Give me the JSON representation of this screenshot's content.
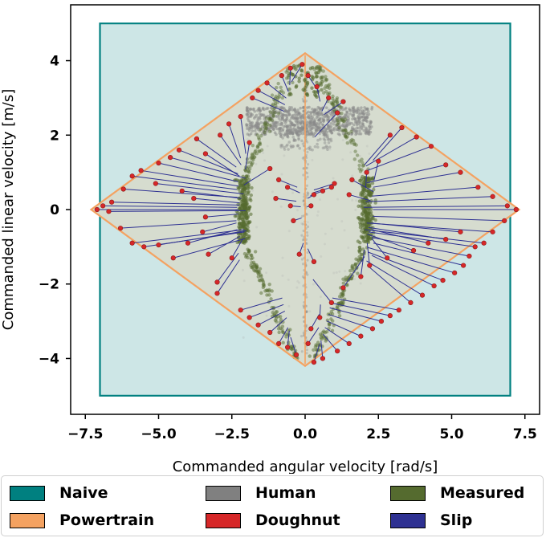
{
  "chart_data": {
    "type": "scatter",
    "title": "",
    "xlabel": "Commanded angular velocity [rad/s]",
    "ylabel": "Commanded linear velocity [m/s]",
    "xlim": [
      -8.0,
      8.0
    ],
    "ylim": [
      -5.5,
      5.5
    ],
    "xticks": [
      -7.5,
      -5.0,
      -2.5,
      0.0,
      2.5,
      5.0,
      7.5
    ],
    "xtick_labels": [
      "−7.5",
      "−5.0",
      "−2.5",
      "0.0",
      "2.5",
      "5.0",
      "7.5"
    ],
    "yticks": [
      -4,
      -2,
      0,
      2,
      4
    ],
    "ytick_labels": [
      "−4",
      "−2",
      "0",
      "2",
      "4"
    ],
    "grid": false,
    "legend_position": "bottom",
    "series": [
      {
        "name": "Naive",
        "kind": "rectangle",
        "color": "#008080",
        "fill": "#cde6e6",
        "x": [
          -7.0,
          7.0,
          7.0,
          -7.0,
          -7.0
        ],
        "y": [
          -5.0,
          -5.0,
          5.0,
          5.0,
          -5.0
        ]
      },
      {
        "name": "Powertrain",
        "kind": "polygon",
        "color": "#f4a261",
        "fill": "#d6dccf",
        "x": [
          0.0,
          7.3,
          0.0,
          -7.3,
          0.0
        ],
        "y": [
          4.2,
          0.0,
          -4.2,
          0.0,
          4.2
        ]
      },
      {
        "name": "Human",
        "kind": "points",
        "color": "#808080"
      },
      {
        "name": "Doughnut",
        "kind": "points",
        "color": "#d62728"
      },
      {
        "name": "Measured",
        "kind": "points",
        "color": "#556b2f"
      },
      {
        "name": "Slip",
        "kind": "arrows",
        "color": "#2e3192"
      }
    ],
    "doughnut_points": [
      [
        -7.1,
        0.0
      ],
      [
        -6.9,
        0.1
      ],
      [
        -6.6,
        0.2
      ],
      [
        -6.2,
        0.55
      ],
      [
        -5.9,
        0.9
      ],
      [
        -5.6,
        1.05
      ],
      [
        -5.0,
        1.25
      ],
      [
        -4.6,
        1.4
      ],
      [
        -4.3,
        1.6
      ],
      [
        -3.7,
        1.9
      ],
      [
        -3.4,
        1.5
      ],
      [
        -2.9,
        2.0
      ],
      [
        -2.6,
        2.3
      ],
      [
        -2.2,
        2.5
      ],
      [
        -1.8,
        3.0
      ],
      [
        -1.6,
        3.2
      ],
      [
        -1.3,
        3.4
      ],
      [
        -0.8,
        3.6
      ],
      [
        -0.5,
        3.8
      ],
      [
        -6.7,
        -0.05
      ],
      [
        -6.3,
        -0.5
      ],
      [
        -5.9,
        -0.9
      ],
      [
        -5.5,
        -1.0
      ],
      [
        -5.0,
        -0.95
      ],
      [
        -4.5,
        -1.3
      ],
      [
        -4.0,
        -0.9
      ],
      [
        -3.5,
        -0.6
      ],
      [
        -3.3,
        -1.2
      ],
      [
        -3.0,
        -1.95
      ],
      [
        -3.0,
        -2.25
      ],
      [
        -2.5,
        -1.3
      ],
      [
        -2.2,
        -2.7
      ],
      [
        -1.9,
        -2.9
      ],
      [
        -1.6,
        -3.1
      ],
      [
        -1.2,
        -3.3
      ],
      [
        -0.9,
        -3.6
      ],
      [
        -0.6,
        -3.7
      ],
      [
        -0.3,
        -3.9
      ],
      [
        -5.1,
        0.7
      ],
      [
        -4.2,
        0.5
      ],
      [
        -3.8,
        0.3
      ],
      [
        -3.4,
        -0.2
      ],
      [
        -1.9,
        1.8
      ],
      [
        -1.2,
        1.1
      ],
      [
        -0.9,
        0.8
      ],
      [
        -0.6,
        0.6
      ],
      [
        -0.4,
        -0.3
      ],
      [
        -0.5,
        0.1
      ],
      [
        -1.0,
        0.3
      ],
      [
        7.2,
        0.0
      ],
      [
        6.9,
        0.1
      ],
      [
        6.4,
        0.35
      ],
      [
        5.9,
        0.6
      ],
      [
        5.3,
        1.0
      ],
      [
        4.8,
        1.2
      ],
      [
        4.3,
        1.7
      ],
      [
        3.8,
        1.95
      ],
      [
        3.3,
        2.2
      ],
      [
        2.9,
        2.0
      ],
      [
        2.5,
        1.3
      ],
      [
        2.1,
        1.0
      ],
      [
        1.6,
        0.8
      ],
      [
        1.0,
        0.7
      ],
      [
        0.6,
        0.5
      ],
      [
        0.3,
        0.4
      ],
      [
        0.2,
        0.1
      ],
      [
        6.8,
        -0.3
      ],
      [
        6.4,
        -0.6
      ],
      [
        6.1,
        -0.9
      ],
      [
        5.8,
        -1.0
      ],
      [
        5.6,
        -1.25
      ],
      [
        5.4,
        -1.5
      ],
      [
        5.1,
        -1.7
      ],
      [
        4.7,
        -1.9
      ],
      [
        4.4,
        -2.05
      ],
      [
        4.0,
        -2.3
      ],
      [
        3.6,
        -2.5
      ],
      [
        3.2,
        -2.7
      ],
      [
        2.9,
        -2.85
      ],
      [
        2.6,
        -3.0
      ],
      [
        2.3,
        -3.2
      ],
      [
        1.9,
        -3.4
      ],
      [
        1.5,
        -3.6
      ],
      [
        1.1,
        -3.8
      ],
      [
        0.6,
        -4.0
      ],
      [
        0.3,
        -4.1
      ],
      [
        5.3,
        -0.6
      ],
      [
        4.8,
        -0.8
      ],
      [
        4.2,
        -0.9
      ],
      [
        3.7,
        -1.1
      ],
      [
        2.8,
        -1.3
      ],
      [
        2.2,
        -1.5
      ],
      [
        1.9,
        -1.8
      ],
      [
        1.3,
        -2.1
      ],
      [
        0.9,
        -2.5
      ],
      [
        0.5,
        -2.9
      ],
      [
        0.2,
        -3.2
      ],
      [
        0.1,
        -3.6
      ],
      [
        1.1,
        2.6
      ],
      [
        1.3,
        2.9
      ],
      [
        0.8,
        3.0
      ],
      [
        0.4,
        3.3
      ],
      [
        0.1,
        3.6
      ],
      [
        -0.1,
        3.9
      ],
      [
        0.9,
        0.6
      ],
      [
        1.5,
        0.4
      ],
      [
        0.3,
        -1.4
      ],
      [
        -0.2,
        -1.2
      ]
    ]
  }
}
